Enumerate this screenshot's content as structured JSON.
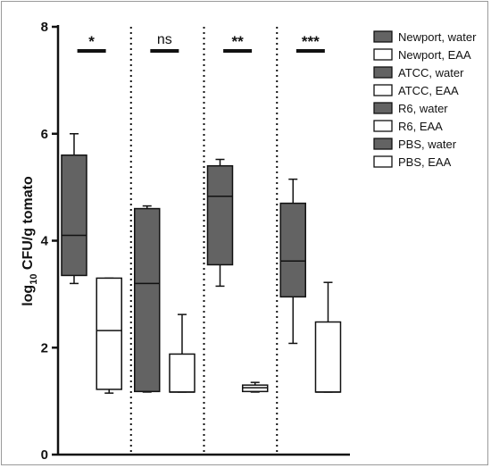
{
  "chart_data": {
    "type": "box",
    "ylabel": "log10 CFU/g tomato",
    "ylabel_parts": {
      "pre": "log",
      "sub": "10",
      "post": " CFU/g tomato"
    },
    "ylim": [
      0,
      8
    ],
    "yticks": [
      0,
      2,
      4,
      6,
      8
    ],
    "grid": false,
    "legend_position": "top-right",
    "colors": {
      "water": "#636363",
      "eaa": "#ffffff",
      "outline": "#111111"
    },
    "groups": [
      {
        "significance": "*"
      },
      {
        "significance": "ns"
      },
      {
        "significance": "**"
      },
      {
        "significance": "***"
      }
    ],
    "series": [
      {
        "name": "Newport, water",
        "group": 0,
        "fill": "water",
        "min": 3.2,
        "q1": 3.35,
        "median": 4.1,
        "q3": 5.6,
        "max": 6.0
      },
      {
        "name": "Newport, EAA",
        "group": 0,
        "fill": "eaa",
        "min": 1.15,
        "q1": 1.22,
        "median": 2.32,
        "q3": 3.3,
        "max": 3.3
      },
      {
        "name": "ATCC, water",
        "group": 1,
        "fill": "water",
        "min": 1.17,
        "q1": 1.18,
        "median": 3.2,
        "q3": 4.6,
        "max": 4.65
      },
      {
        "name": "ATCC, EAA",
        "group": 1,
        "fill": "eaa",
        "min": 1.17,
        "q1": 1.17,
        "median": 1.17,
        "q3": 1.88,
        "max": 2.62
      },
      {
        "name": "R6, water",
        "group": 2,
        "fill": "water",
        "min": 3.15,
        "q1": 3.55,
        "median": 4.83,
        "q3": 5.4,
        "max": 5.52
      },
      {
        "name": "R6, EAA",
        "group": 2,
        "fill": "eaa",
        "min": 1.17,
        "q1": 1.18,
        "median": 1.25,
        "q3": 1.3,
        "max": 1.35
      },
      {
        "name": "PBS, water",
        "group": 3,
        "fill": "water",
        "min": 2.08,
        "q1": 2.95,
        "median": 3.62,
        "q3": 4.7,
        "max": 5.15
      },
      {
        "name": "PBS, EAA",
        "group": 3,
        "fill": "eaa",
        "min": 1.17,
        "q1": 1.17,
        "median": 1.17,
        "q3": 2.48,
        "max": 3.22
      }
    ]
  }
}
